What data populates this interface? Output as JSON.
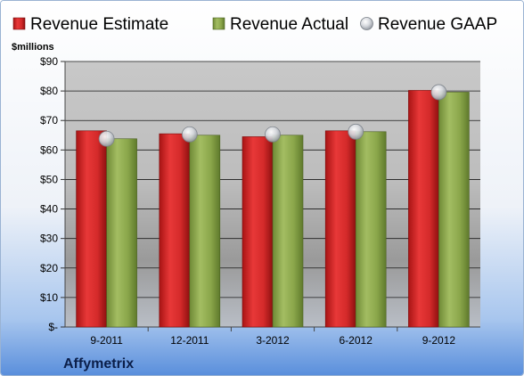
{
  "chart_data": {
    "type": "bar",
    "categories": [
      "9-2011",
      "12-2011",
      "3-2012",
      "6-2012",
      "9-2012"
    ],
    "series": [
      {
        "name": "Revenue Estimate",
        "values": [
          66.5,
          65.5,
          64.5,
          66.5,
          80.2
        ],
        "color": "#d42a2a"
      },
      {
        "name": "Revenue Actual",
        "values": [
          63.8,
          65.0,
          65.0,
          66.2,
          79.6
        ],
        "color": "#8aa64a"
      },
      {
        "name": "Revenue GAAP",
        "values": [
          63.8,
          65.3,
          65.3,
          66.2,
          79.6
        ],
        "kind": "marker",
        "color": "#c8ccd2"
      }
    ],
    "ylabel": "$millions",
    "ylim": [
      0,
      90
    ],
    "yticks": [
      0,
      10,
      20,
      30,
      40,
      50,
      60,
      70,
      80,
      90
    ],
    "ytick_labels": [
      "$-",
      "$10",
      "$20",
      "$30",
      "$40",
      "$50",
      "$60",
      "$70",
      "$80",
      "$90"
    ],
    "grid": true,
    "legend_position": "top"
  },
  "company": "Affymetrix"
}
